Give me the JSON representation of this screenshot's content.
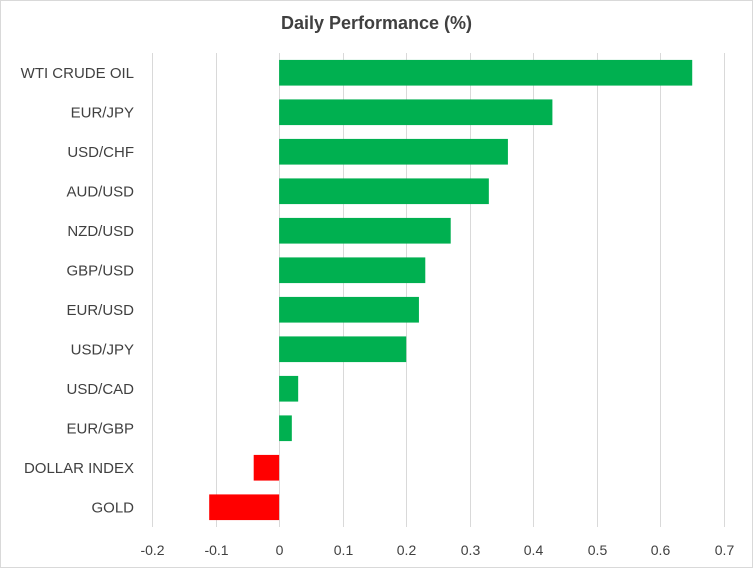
{
  "chart_data": {
    "type": "bar",
    "orientation": "horizontal",
    "title": "Daily Performance (%)",
    "xlabel": "",
    "ylabel": "",
    "categories": [
      "WTI CRUDE OIL",
      "EUR/JPY",
      "USD/CHF",
      "AUD/USD",
      "NZD/USD",
      "GBP/USD",
      "EUR/USD",
      "USD/JPY",
      "USD/CAD",
      "EUR/GBP",
      "DOLLAR INDEX",
      "GOLD"
    ],
    "values": [
      0.65,
      0.43,
      0.36,
      0.33,
      0.27,
      0.23,
      0.22,
      0.2,
      0.03,
      0.02,
      -0.04,
      -0.11
    ],
    "xlim": [
      -0.2,
      0.7
    ],
    "xticks": [
      -0.2,
      -0.1,
      0,
      0.1,
      0.2,
      0.3,
      0.4,
      0.5,
      0.6,
      0.7
    ],
    "xtick_labels": [
      "-0.2",
      "-0.1",
      "0",
      "0.1",
      "0.2",
      "0.3",
      "0.4",
      "0.5",
      "0.6",
      "0.7"
    ],
    "grid": "vertical",
    "legend": "none",
    "colors": {
      "positive": "#00b050",
      "negative": "#ff0000",
      "grid": "#d9d9d9",
      "text": "#404040"
    }
  }
}
